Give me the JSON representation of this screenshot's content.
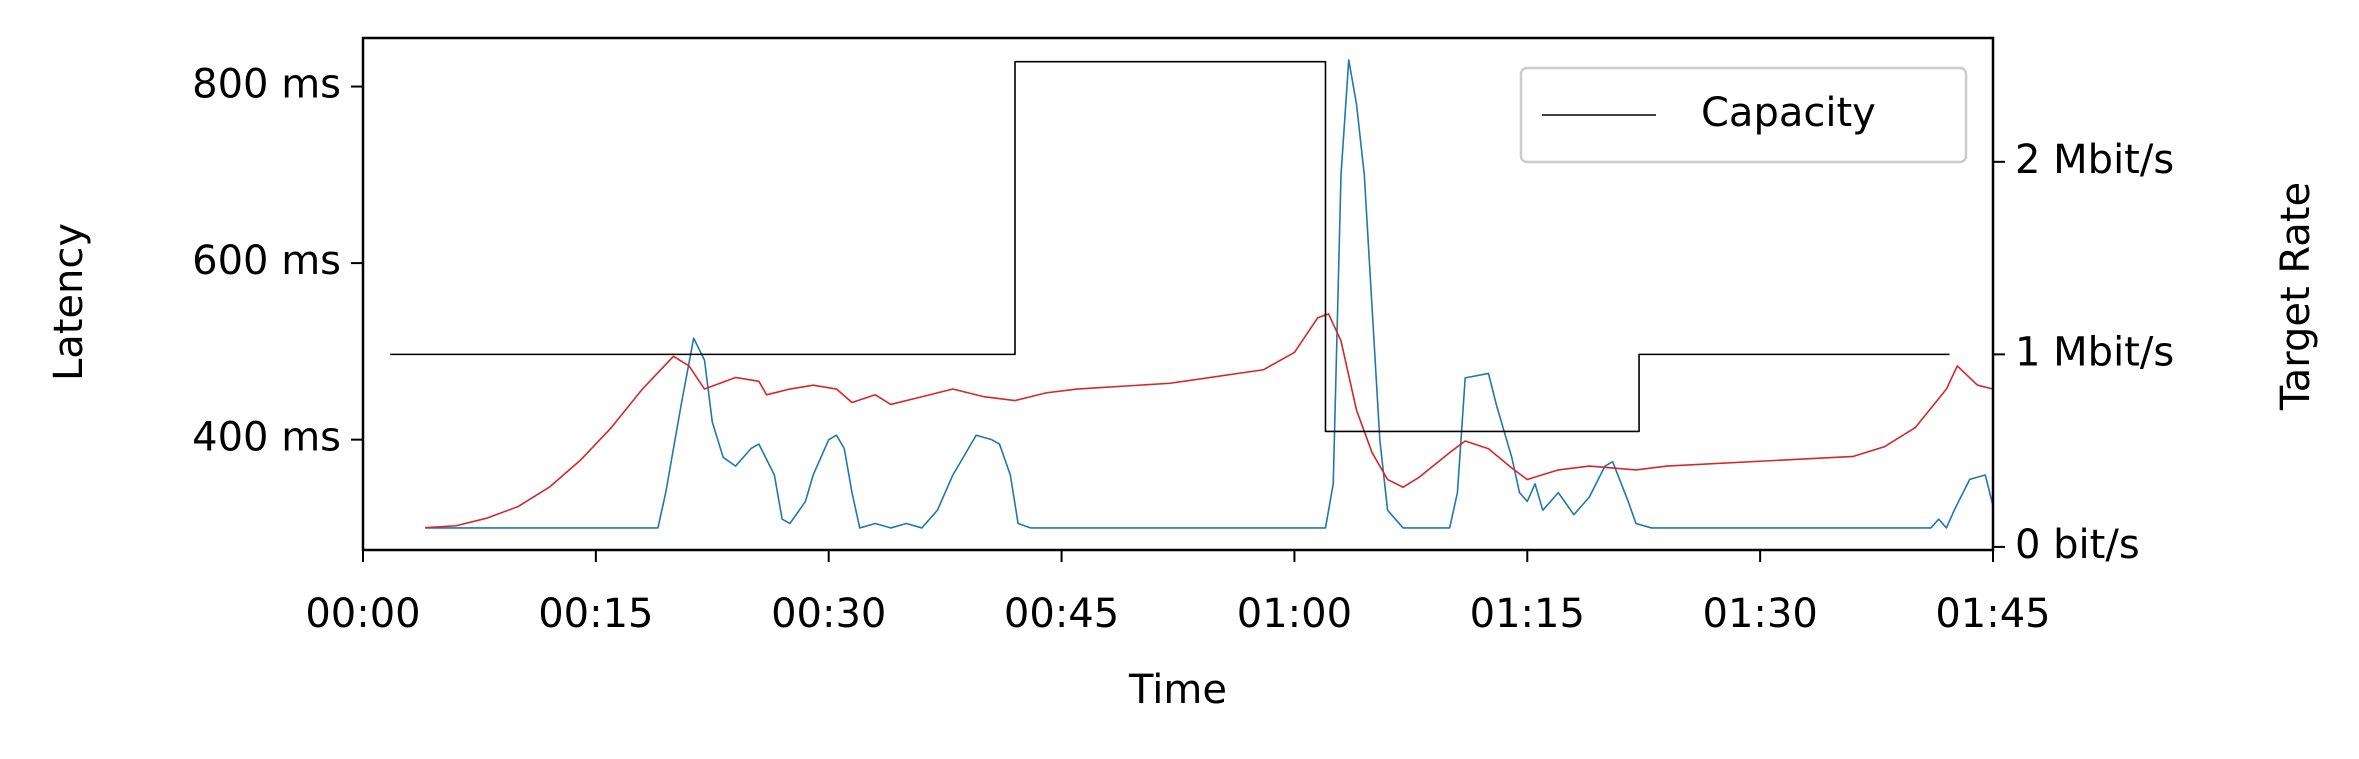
{
  "chart_data": {
    "type": "line",
    "xlabel": "Time",
    "ylabel": "Latency",
    "y2label": "Target Rate",
    "ylabel_color": "#1f77b4",
    "y2label_color": "#d62728",
    "xlim": [
      0,
      105
    ],
    "xticks": [
      {
        "value": 0,
        "label": "00:00"
      },
      {
        "value": 15,
        "label": "00:15"
      },
      {
        "value": 30,
        "label": "00:30"
      },
      {
        "value": 45,
        "label": "00:45"
      },
      {
        "value": 60,
        "label": "01:00"
      },
      {
        "value": 75,
        "label": "01:15"
      },
      {
        "value": 90,
        "label": "01:30"
      },
      {
        "value": 105,
        "label": "01:45"
      }
    ],
    "ylim": [
      275,
      855
    ],
    "yticks": [
      {
        "value": 400,
        "label": "400 ms"
      },
      {
        "value": 600,
        "label": "600 ms"
      },
      {
        "value": 800,
        "label": "800 ms"
      }
    ],
    "y2lim": [
      -16000,
      2643000
    ],
    "y2ticks": [
      {
        "value": 0,
        "label": "0 bit/s"
      },
      {
        "value": 1000000,
        "label": "1 Mbit/s"
      },
      {
        "value": 2000000,
        "label": "2 Mbit/s"
      }
    ],
    "grid": false,
    "legend": "upper right",
    "series": [
      {
        "color": "#1f77b4",
        "axis": "y",
        "x": [
          4,
          19,
          19.5,
          20.5,
          21.3,
          22,
          22.5,
          23.2,
          24,
          25,
          25.5,
          26.5,
          27,
          27.5,
          28.5,
          29,
          30,
          30.5,
          31,
          31.5,
          32,
          33,
          34,
          35,
          36,
          37,
          38,
          39,
          39.5,
          40.5,
          41,
          41.7,
          42.2,
          43,
          62,
          62.5,
          63,
          63.5,
          64,
          64.5,
          65,
          65.5,
          66,
          67,
          70,
          70.5,
          71,
          72.5,
          73,
          74,
          74.5,
          75,
          75.5,
          76,
          77,
          78,
          79,
          80,
          80.5,
          81.5,
          82,
          83,
          101,
          101.5,
          102,
          102.5,
          103.5,
          104.5,
          105
        ],
        "values": [
          300,
          300,
          340,
          440,
          515,
          490,
          420,
          380,
          370,
          390,
          395,
          360,
          310,
          305,
          330,
          360,
          400,
          405,
          390,
          340,
          300,
          305,
          300,
          305,
          300,
          320,
          360,
          390,
          405,
          400,
          395,
          360,
          305,
          300,
          300,
          350,
          700,
          830,
          780,
          700,
          550,
          400,
          320,
          300,
          300,
          340,
          470,
          475,
          440,
          380,
          340,
          330,
          350,
          320,
          340,
          315,
          335,
          370,
          375,
          330,
          305,
          300,
          300,
          310,
          300,
          320,
          355,
          360,
          325
        ]
      },
      {
        "color": "#d62728",
        "axis": "y2",
        "x": [
          4,
          6,
          8,
          10,
          12,
          14,
          16,
          18,
          20,
          21,
          22,
          24,
          25.5,
          26,
          27.5,
          29,
          30.5,
          31.5,
          33,
          34,
          36,
          38,
          40,
          42,
          44,
          46,
          52,
          58,
          60,
          61.5,
          62.2,
          63,
          64,
          65,
          66,
          67,
          68,
          70,
          71,
          72.5,
          74,
          75,
          77,
          79,
          82,
          84,
          96,
          98,
          100,
          102,
          102.7,
          104,
          105
        ],
        "values": [
          100000,
          110000,
          150000,
          210000,
          310000,
          450000,
          620000,
          820000,
          990000,
          940000,
          820000,
          880000,
          860000,
          790000,
          820000,
          840000,
          820000,
          750000,
          790000,
          740000,
          780000,
          820000,
          780000,
          760000,
          800000,
          820000,
          850000,
          920000,
          1010000,
          1190000,
          1210000,
          1070000,
          710000,
          490000,
          350000,
          310000,
          360000,
          490000,
          550000,
          510000,
          410000,
          350000,
          400000,
          420000,
          400000,
          420000,
          470000,
          520000,
          620000,
          820000,
          940000,
          840000,
          820000
        ]
      },
      {
        "name": "Capacity",
        "color": "#000000",
        "axis": "y2",
        "x": [
          1.75,
          42,
          42,
          62,
          62,
          82.2,
          82.2,
          102.2
        ],
        "values": [
          1000000,
          1000000,
          2520000,
          2520000,
          600000,
          600000,
          1000000,
          1000000
        ]
      }
    ]
  }
}
